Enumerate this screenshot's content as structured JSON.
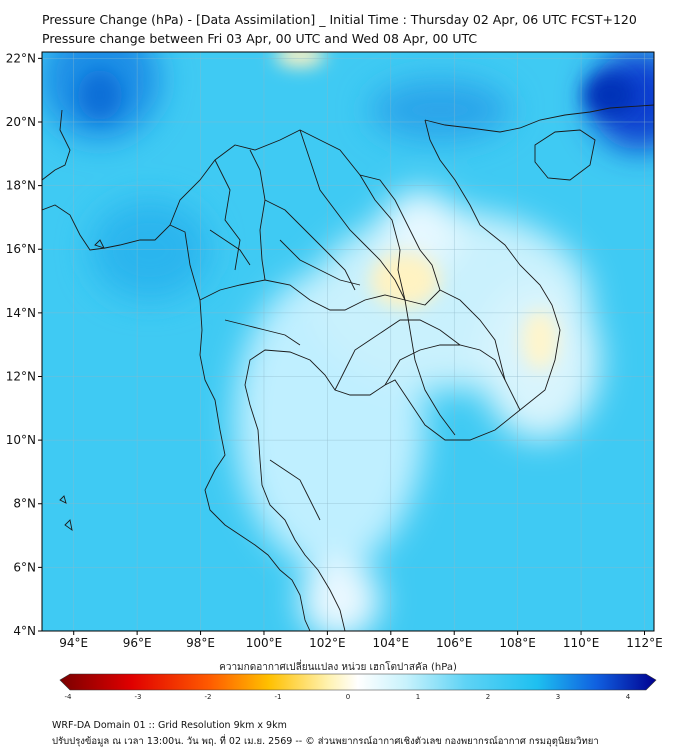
{
  "header": {
    "title_line1": "Pressure Change (hPa) - [Data Assimilation] _ Initial Time : Thursday 02 Apr, 06 UTC FCST+120",
    "title_line2": "Pressure change between Fri 03 Apr, 00 UTC and Wed 08 Apr, 00 UTC"
  },
  "map": {
    "lon_ticks": [
      "94°E",
      "96°E",
      "98°E",
      "100°E",
      "102°E",
      "104°E",
      "106°E",
      "108°E",
      "110°E",
      "112°E"
    ],
    "lat_ticks": [
      "22°N",
      "20°N",
      "18°N",
      "16°N",
      "14°N",
      "12°N",
      "10°N",
      "8°N",
      "6°N",
      "4°N"
    ],
    "lon_range": [
      93,
      112.3
    ],
    "lat_range": [
      4,
      22.2
    ]
  },
  "colorbar": {
    "label": "ความกดอากาศเปลี่ยนแปลง หน่วย เฮกโตปาสคัล (hPa)",
    "ticks": [
      "-4",
      "-3",
      "-2",
      "-1",
      "0",
      "1",
      "2",
      "3",
      "4"
    ],
    "range": [
      -4,
      4
    ]
  },
  "footer": {
    "line1": "WRF-DA Domain 01 :: Grid Resolution 9km x 9km",
    "line2": "ปรับปรุงข้อมูล ณ เวลา 13:00น. วัน พฤ. ที่ 02 เม.ย. 2569 -- © ส่วนพยากรณ์อากาศเชิงตัวเลข กองพยากรณ์อากาศ กรมอุตุนิยมวิทยา"
  },
  "colors": {
    "negative_max": "#7a0000",
    "neutral": "#ffffff",
    "positive_light": "#5fd3f5",
    "positive_mid": "#1ec0f0",
    "positive_max": "#000090"
  }
}
